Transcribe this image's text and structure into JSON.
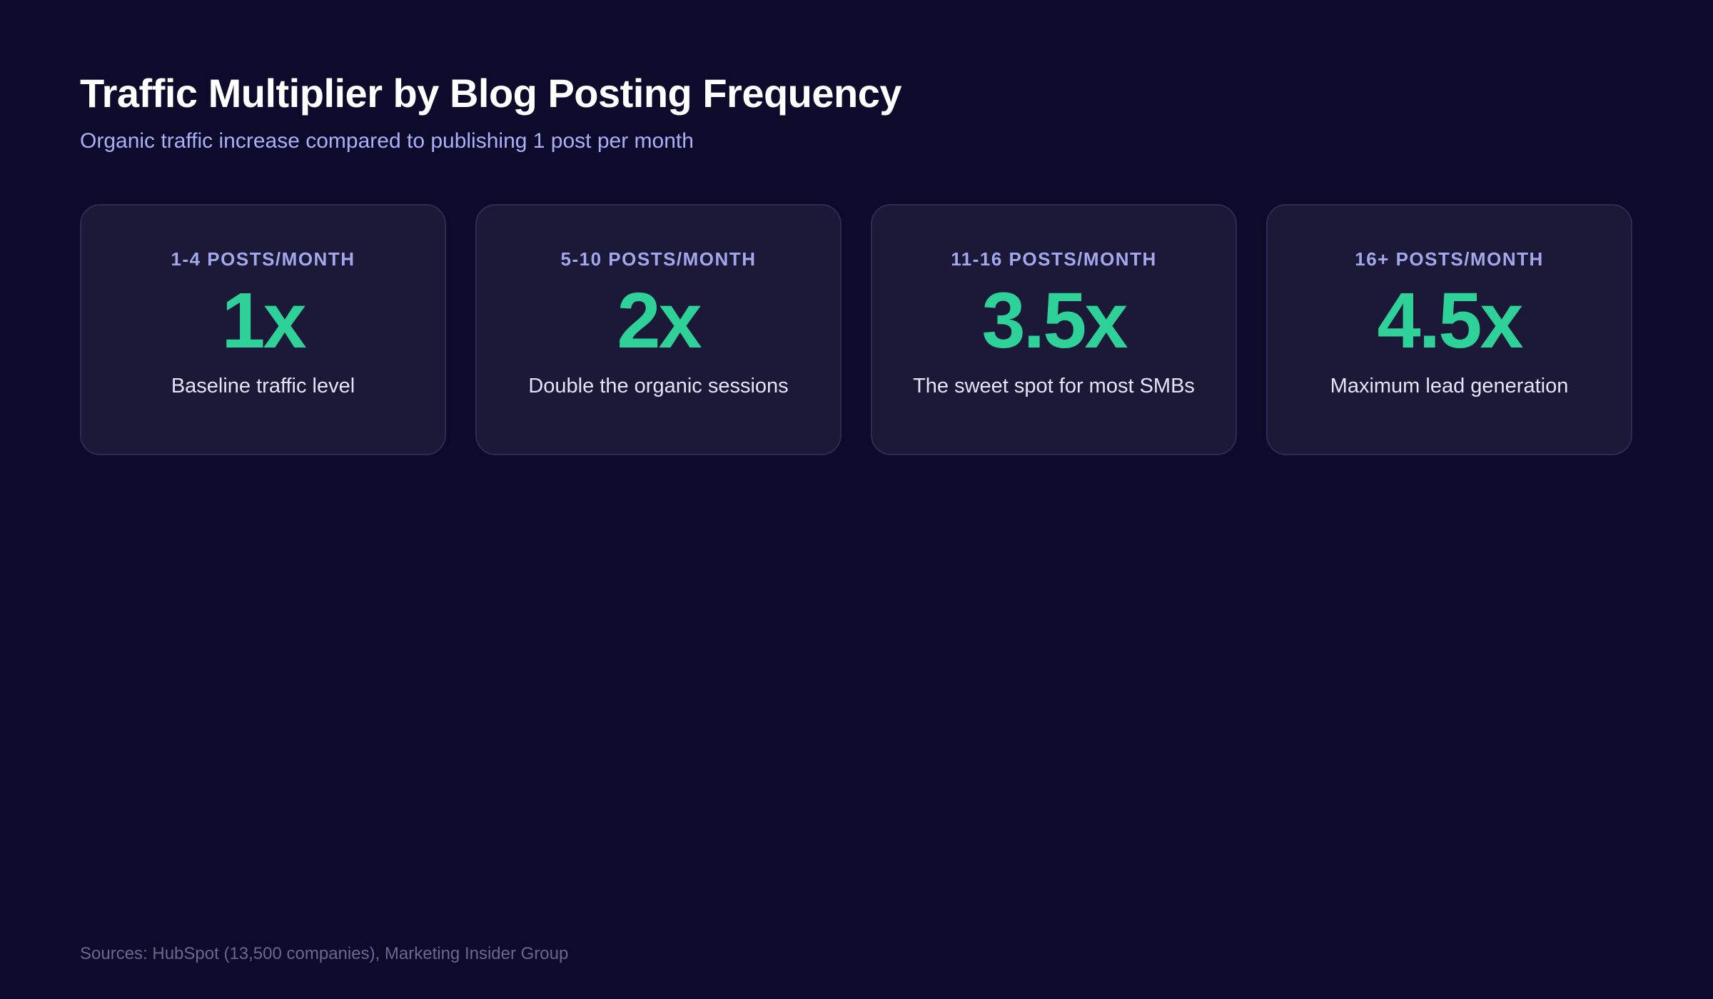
{
  "header": {
    "title": "Traffic Multiplier by Blog Posting Frequency",
    "subtitle": "Organic traffic increase compared to publishing 1 post per month"
  },
  "cards": [
    {
      "label": "1-4 POSTS/MONTH",
      "value": "1x",
      "description": "Baseline traffic level"
    },
    {
      "label": "5-10 POSTS/MONTH",
      "value": "2x",
      "description": "Double the organic sessions"
    },
    {
      "label": "11-16 POSTS/MONTH",
      "value": "3.5x",
      "description": "The sweet spot for most SMBs"
    },
    {
      "label": "16+ POSTS/MONTH",
      "value": "4.5x",
      "description": "Maximum lead generation"
    }
  ],
  "footer": {
    "sources": "Sources: HubSpot (13,500 companies), Marketing Insider Group"
  },
  "colors": {
    "background": "#0e0a2c",
    "card_background": "#1c1838",
    "card_border": "#2f2a52",
    "accent_value": "#2ed198",
    "label": "#a3a8ec",
    "subtitle": "#a9b0f5",
    "footer_text": "#6a6790"
  }
}
